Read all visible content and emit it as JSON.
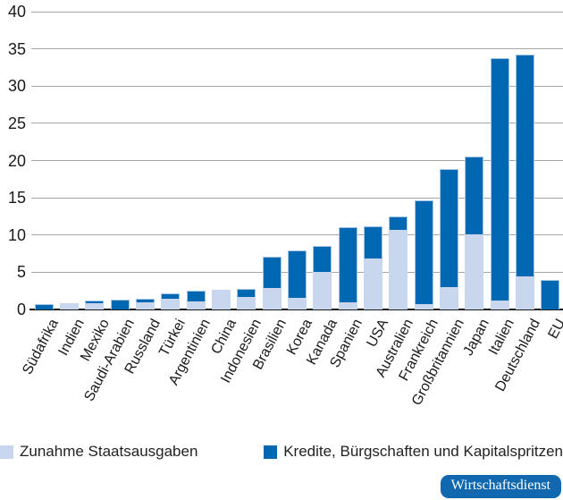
{
  "chart_data": {
    "type": "bar",
    "stacked": true,
    "categories": [
      "Südafrika",
      "Indien",
      "Mexiko",
      "Saudi-Arabien",
      "Russland",
      "Türkei",
      "Argentinien",
      "China",
      "Indonesien",
      "Brasilien",
      "Korea",
      "Kanada",
      "Spanien",
      "USA",
      "Australien",
      "Frankreich",
      "Großbritannien",
      "Japan",
      "Italien",
      "Deutschland",
      "EU"
    ],
    "series": [
      {
        "name": "Zunahme Staatsausgaben",
        "color": "#c9d7ee",
        "values": [
          0,
          0.8,
          0.85,
          0,
          0.9,
          1.4,
          1.1,
          2.7,
          1.7,
          2.9,
          1.5,
          5.1,
          1.0,
          6.9,
          10.7,
          0.7,
          3.0,
          10.1,
          1.2,
          4.4,
          0
        ]
      },
      {
        "name": "Kredite, Bürgschaften und Kapitalspritzen",
        "color": "#0068b2",
        "values": [
          0.7,
          0,
          0.35,
          1.3,
          0.6,
          0.8,
          1.4,
          0,
          1.1,
          4.2,
          6.4,
          3.4,
          10.1,
          4.3,
          1.8,
          14.0,
          15.8,
          10.5,
          32.5,
          29.8,
          4.0
        ]
      }
    ],
    "ylim": [
      0,
      40
    ],
    "yticks": [
      0,
      5,
      10,
      15,
      20,
      25,
      30,
      35,
      40
    ],
    "grid": true,
    "legend_position": "bottom",
    "axis_color": "#1a1a1a",
    "gridline_color": "#a6a6a6"
  },
  "branding": {
    "badge_label": "Wirtschaftsdienst",
    "badge_color": "#1268ae"
  }
}
